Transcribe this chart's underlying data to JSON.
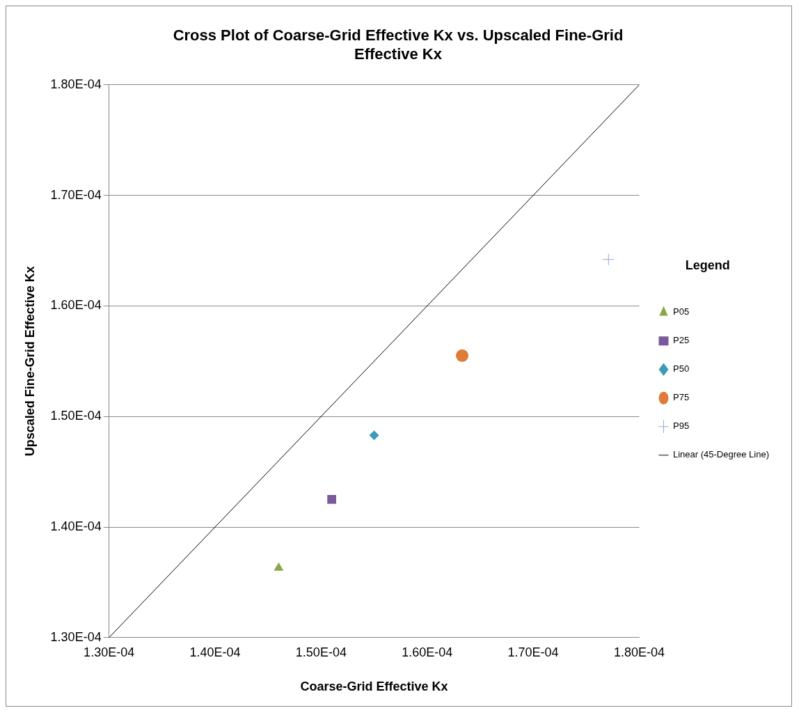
{
  "chart_data": {
    "type": "scatter",
    "title": "Cross Plot of Coarse-Grid Effective Kx vs. Upscaled Fine-Grid Effective Kx",
    "xlabel": "Coarse-Grid Effective Kx",
    "ylabel": "Upscaled Fine-Grid Effective Kx",
    "legend_title": "Legend",
    "legend": "right",
    "grid": "y",
    "xlim": [
      0.00013,
      0.00018
    ],
    "ylim": [
      0.00013,
      0.00018
    ],
    "xticks": [
      {
        "value": 0.00013,
        "label": "1.30E-04"
      },
      {
        "value": 0.00014,
        "label": "1.40E-04"
      },
      {
        "value": 0.00015,
        "label": "1.50E-04"
      },
      {
        "value": 0.00016,
        "label": "1.60E-04"
      },
      {
        "value": 0.00017,
        "label": "1.70E-04"
      },
      {
        "value": 0.00018,
        "label": "1.80E-04"
      }
    ],
    "yticks": [
      {
        "value": 0.00013,
        "label": "1.30E-04"
      },
      {
        "value": 0.00014,
        "label": "1.40E-04"
      },
      {
        "value": 0.00015,
        "label": "1.50E-04"
      },
      {
        "value": 0.00016,
        "label": "1.60E-04"
      },
      {
        "value": 0.00017,
        "label": "1.70E-04"
      },
      {
        "value": 0.00018,
        "label": "1.80E-04"
      }
    ],
    "series": [
      {
        "name": "P05",
        "type": "scatter",
        "marker": "triangle",
        "color": "#8aa64a",
        "x": [
          0.000146
        ],
        "values": [
          0.0001363
        ]
      },
      {
        "name": "P25",
        "type": "scatter",
        "marker": "square",
        "color": "#7a5a9a",
        "x": [
          0.000151
        ],
        "values": [
          0.0001425
        ]
      },
      {
        "name": "P50",
        "type": "scatter",
        "marker": "diamond",
        "color": "#3d9ab8",
        "x": [
          0.000155
        ],
        "values": [
          0.0001483
        ]
      },
      {
        "name": "P75",
        "type": "scatter",
        "marker": "circle",
        "color": "#e07b39",
        "x": [
          0.0001633
        ],
        "values": [
          0.0001555
        ]
      },
      {
        "name": "P95",
        "type": "scatter",
        "marker": "cross",
        "color": "#94a9d6",
        "x": [
          0.0001771
        ],
        "values": [
          0.0001642
        ]
      },
      {
        "name": "Linear (45-Degree Line)",
        "type": "line",
        "marker": "none",
        "line_style": "solid",
        "color": "#000000",
        "x": [
          0.00013,
          0.00018
        ],
        "values": [
          0.00013,
          0.00018
        ]
      }
    ]
  }
}
